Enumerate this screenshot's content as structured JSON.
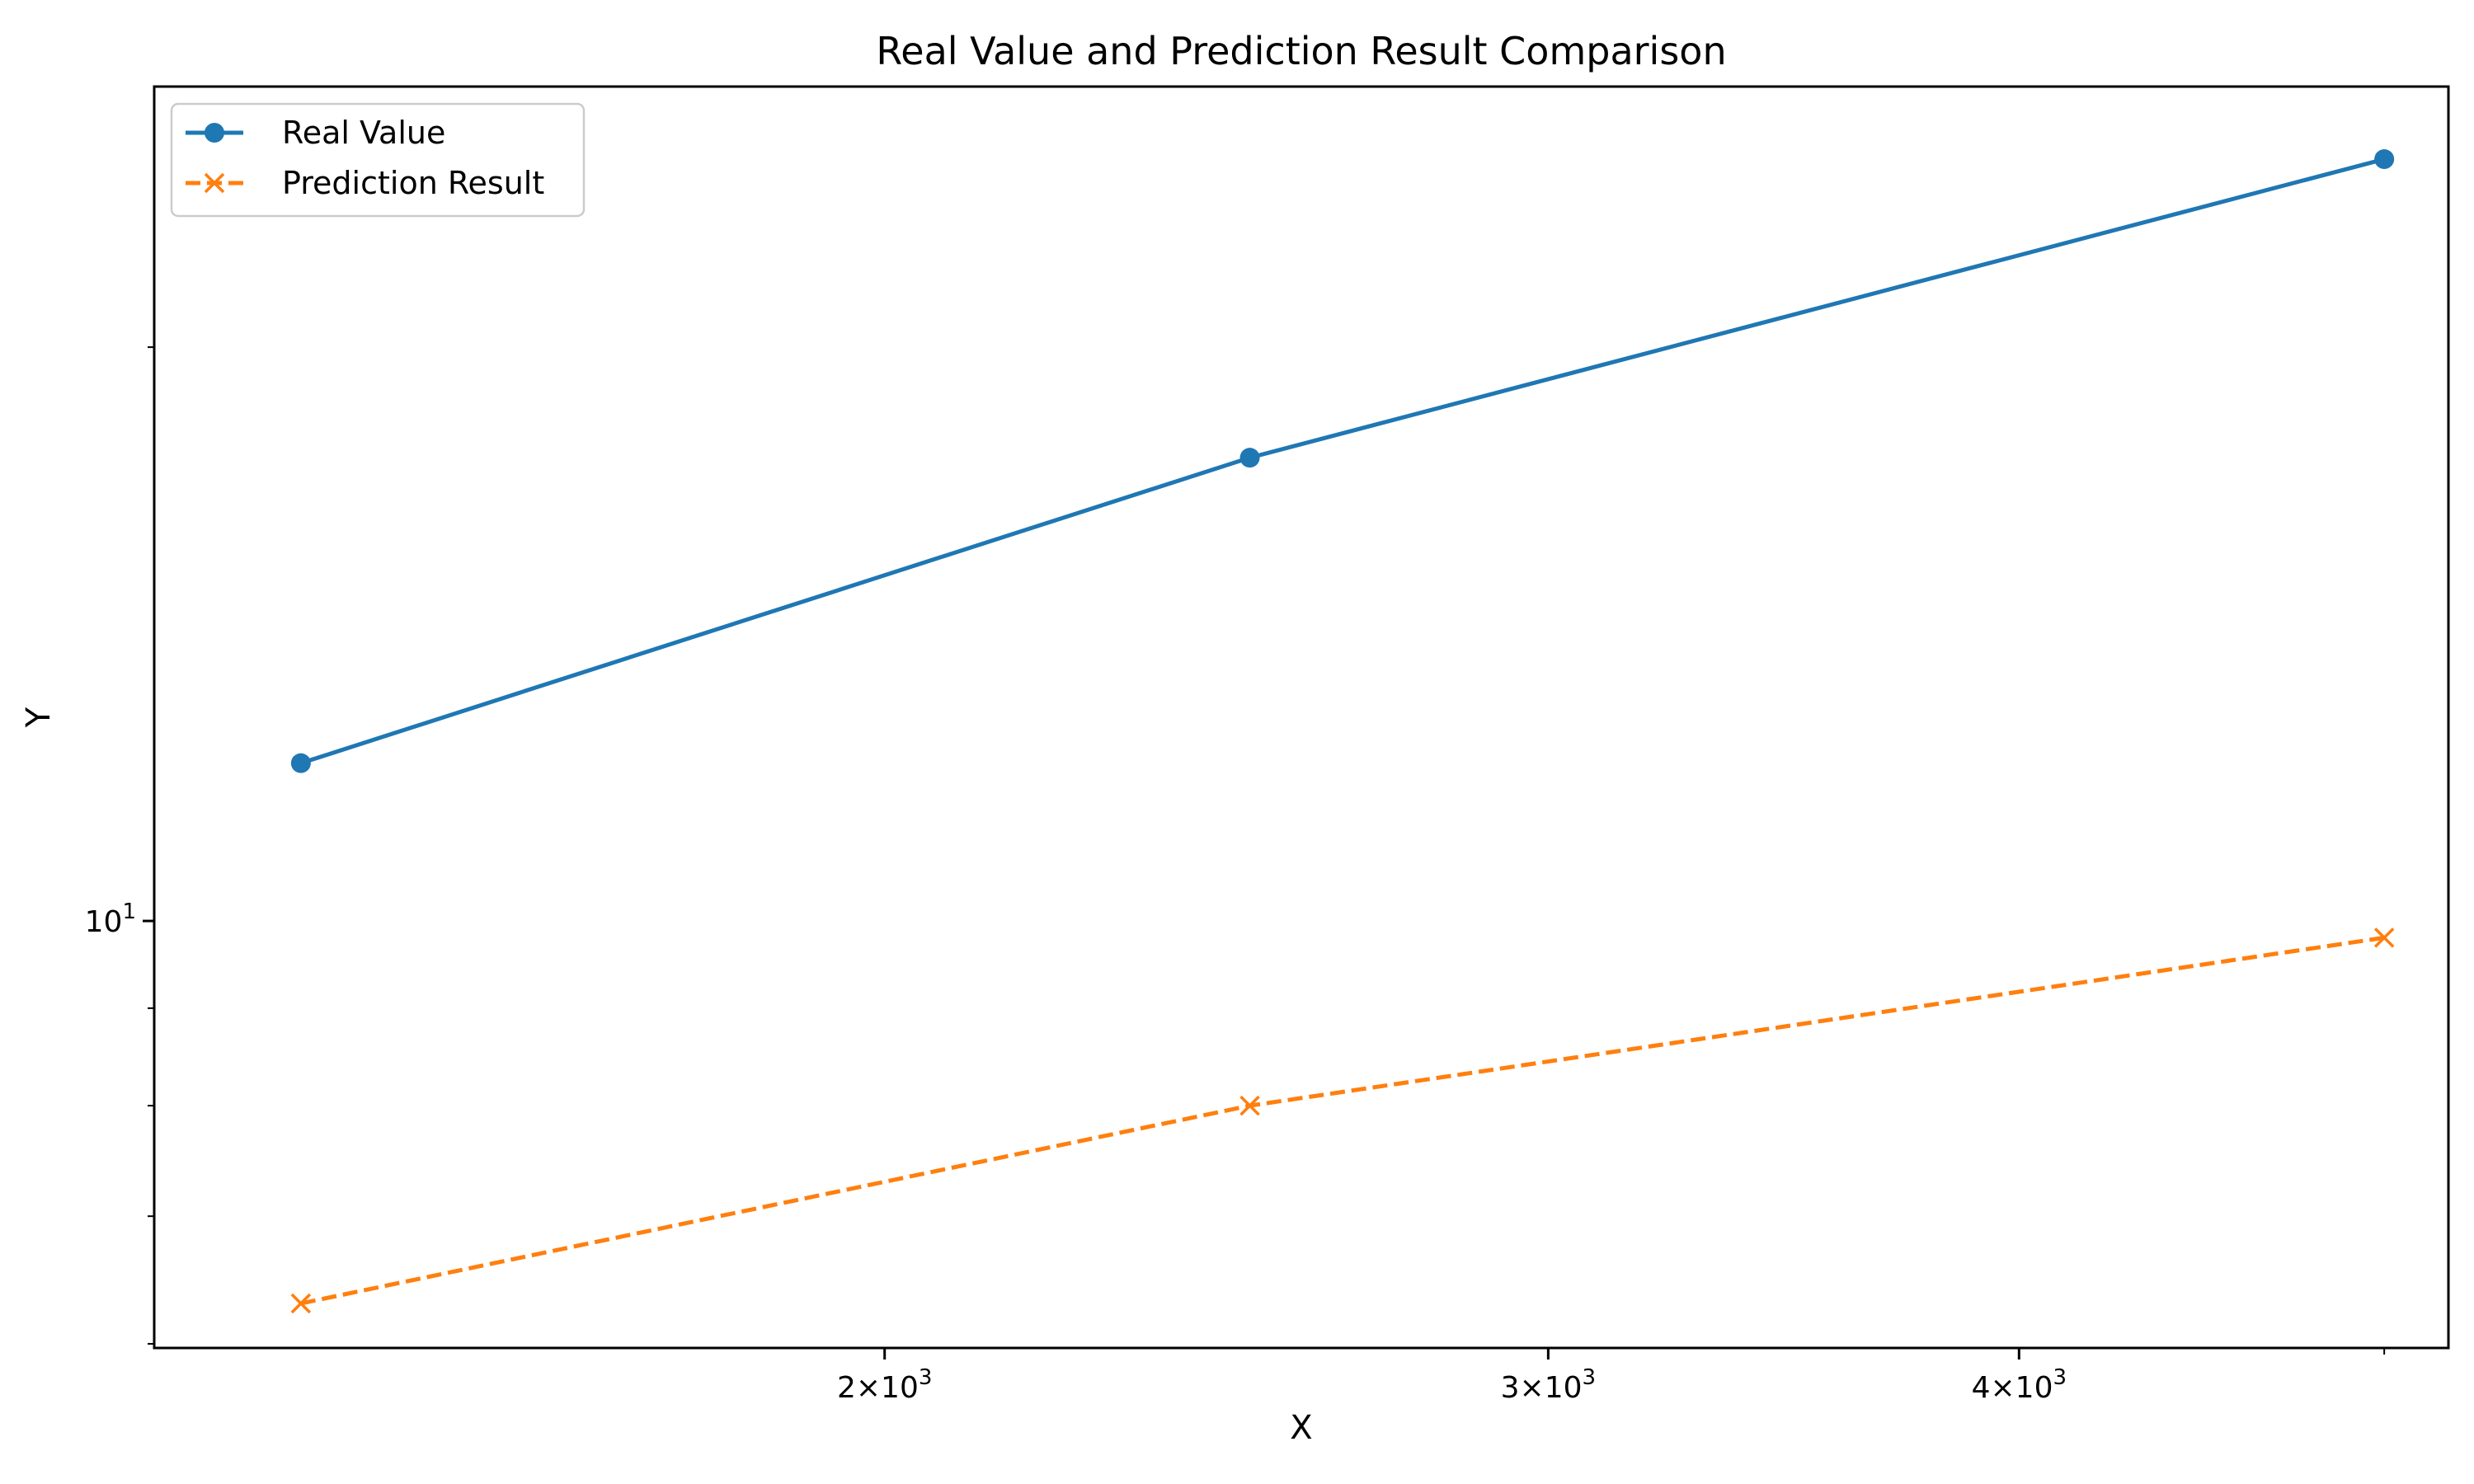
{
  "chart_data": {
    "type": "line",
    "title": "Real Value and Prediction Result Comparison",
    "xlabel": "X",
    "ylabel": "Y",
    "xscale": "log",
    "yscale": "log",
    "xlim": [
      1280,
      5200
    ],
    "ylim": [
      5.97,
      27.4
    ],
    "x": [
      1400,
      2500,
      5000
    ],
    "series": [
      {
        "name": "Real Value",
        "values": [
          12.1,
          17.5,
          25.1
        ],
        "color": "#1f77b4",
        "linestyle": "solid",
        "marker": "circle"
      },
      {
        "name": "Prediction Result",
        "values": [
          6.3,
          8.0,
          9.8
        ],
        "color": "#ff7f0e",
        "linestyle": "dashed",
        "marker": "x"
      }
    ],
    "x_ticks": [
      {
        "value": 2000,
        "base": "2×10",
        "exp": "3"
      },
      {
        "value": 3000,
        "base": "3×10",
        "exp": "3"
      },
      {
        "value": 4000,
        "base": "4×10",
        "exp": "3"
      }
    ],
    "x_minor_ticks": [
      5000
    ],
    "y_ticks": [
      {
        "value": 10,
        "base": "10",
        "exp": "1"
      }
    ],
    "y_minor_ticks": [
      6,
      7,
      8,
      9,
      20
    ],
    "grid": false,
    "legend": "top-left"
  }
}
